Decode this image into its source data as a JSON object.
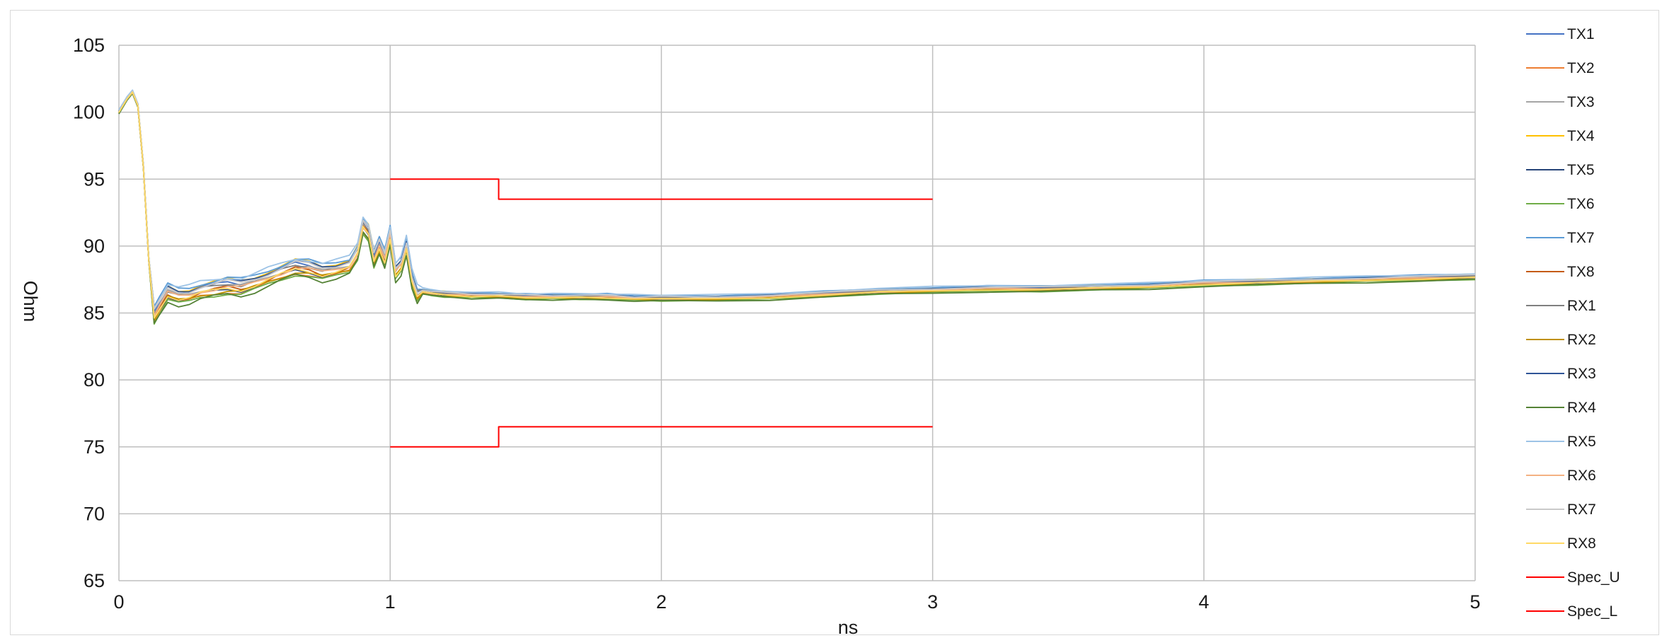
{
  "chart_data": {
    "type": "line",
    "title": "",
    "xlabel": "ns",
    "ylabel": "Ohm",
    "xlim": [
      0,
      5
    ],
    "ylim": [
      65,
      105
    ],
    "xticks": [
      0,
      1,
      2,
      3,
      4,
      5
    ],
    "yticks": [
      65,
      70,
      75,
      80,
      85,
      90,
      95,
      100,
      105
    ],
    "grid": true,
    "legend_position": "right",
    "base_curve": {
      "x": [
        0,
        0.03,
        0.05,
        0.07,
        0.09,
        0.11,
        0.13,
        0.15,
        0.18,
        0.22,
        0.26,
        0.3,
        0.35,
        0.4,
        0.45,
        0.5,
        0.55,
        0.6,
        0.65,
        0.7,
        0.75,
        0.8,
        0.85,
        0.88,
        0.9,
        0.92,
        0.94,
        0.96,
        0.98,
        1.0,
        1.02,
        1.04,
        1.06,
        1.08,
        1.1,
        1.12,
        1.15,
        1.2,
        1.3,
        1.4,
        1.5,
        1.6,
        1.7,
        1.8,
        1.9,
        2.0,
        2.2,
        2.4,
        2.6,
        2.8,
        3.0,
        3.2,
        3.4,
        3.6,
        3.8,
        4.0,
        4.2,
        4.4,
        4.6,
        4.8,
        5.0
      ],
      "y": [
        100,
        101,
        101.5,
        100.5,
        96,
        89,
        84.8,
        85.5,
        86.5,
        86.2,
        86.3,
        86.6,
        86.8,
        87.0,
        86.9,
        87.2,
        87.6,
        88.0,
        88.4,
        88.3,
        88.0,
        88.2,
        88.5,
        89.5,
        91.5,
        91.0,
        89.0,
        90.0,
        89.0,
        90.8,
        88.0,
        88.5,
        90.0,
        87.5,
        86.3,
        86.6,
        86.5,
        86.4,
        86.3,
        86.3,
        86.2,
        86.2,
        86.2,
        86.2,
        86.1,
        86.1,
        86.1,
        86.2,
        86.4,
        86.6,
        86.7,
        86.8,
        86.8,
        86.9,
        87.0,
        87.2,
        87.3,
        87.4,
        87.5,
        87.6,
        87.7
      ]
    },
    "series": [
      {
        "name": "TX1",
        "color": "#4472C4",
        "offset": 0.3
      },
      {
        "name": "TX2",
        "color": "#ED7D31",
        "offset": -0.4
      },
      {
        "name": "TX3",
        "color": "#A5A5A5",
        "offset": 0.1
      },
      {
        "name": "TX4",
        "color": "#FFC000",
        "offset": 0.5
      },
      {
        "name": "TX5",
        "color": "#264478",
        "offset": -0.2
      },
      {
        "name": "TX6",
        "color": "#70AD47",
        "offset": -0.5
      },
      {
        "name": "TX7",
        "color": "#5B9BD5",
        "offset": 0.6
      },
      {
        "name": "TX8",
        "color": "#C55A11",
        "offset": -0.1
      },
      {
        "name": "RX1",
        "color": "#7F7F7F",
        "offset": 0.2
      },
      {
        "name": "RX2",
        "color": "#BF9000",
        "offset": -0.3
      },
      {
        "name": "RX3",
        "color": "#2F5597",
        "offset": 0.4
      },
      {
        "name": "RX4",
        "color": "#548235",
        "offset": -0.6
      },
      {
        "name": "RX5",
        "color": "#9DC3E6",
        "offset": 0.7
      },
      {
        "name": "RX6",
        "color": "#F4B183",
        "offset": 0.0
      },
      {
        "name": "RX7",
        "color": "#C9C9C9",
        "offset": 0.35
      },
      {
        "name": "RX8",
        "color": "#FFD966",
        "offset": -0.15
      },
      {
        "name": "Spec_U",
        "color": "#FF0000",
        "x": [
          1.0,
          1.4,
          1.4,
          3.0
        ],
        "y": [
          95.0,
          95.0,
          93.5,
          93.5
        ]
      },
      {
        "name": "Spec_L",
        "color": "#FF0000",
        "x": [
          1.0,
          1.4,
          1.4,
          3.0
        ],
        "y": [
          75.0,
          75.0,
          76.5,
          76.5
        ]
      }
    ]
  }
}
